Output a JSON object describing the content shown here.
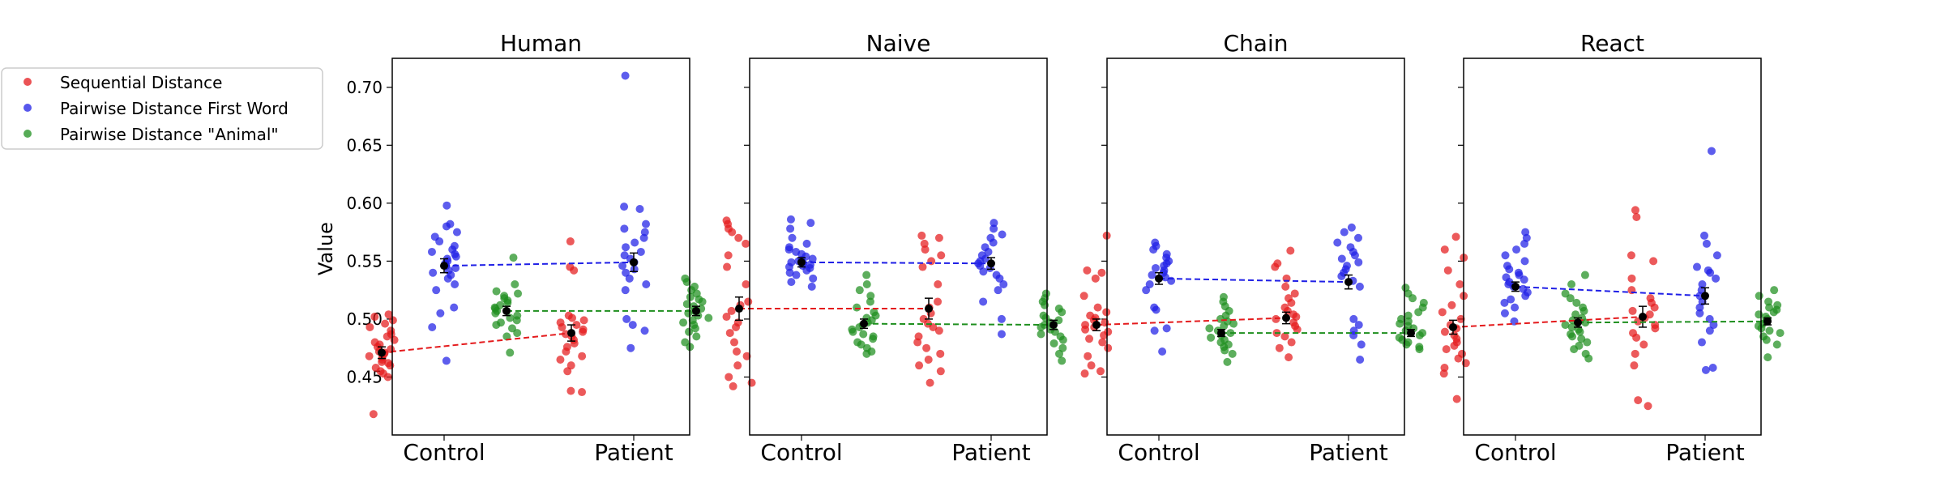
{
  "ylabel": "Value",
  "legend": {
    "placement": "upper-left-outside",
    "entries": [
      {
        "label": "Sequential Distance",
        "color": "#e41a1c"
      },
      {
        "label": "Pairwise Distance First Word",
        "color": "#1f1fe6"
      },
      {
        "label": "Pairwise Distance \"Animal\"",
        "color": "#1e8f1e"
      }
    ]
  },
  "chart_data": [
    {
      "type": "scatter",
      "title": "Human",
      "categories": [
        "Control",
        "Patient"
      ],
      "yticks": [
        "0.45",
        "0.50",
        "0.55",
        "0.60",
        "0.65",
        "0.70"
      ],
      "ylim": [
        0.4,
        0.725
      ],
      "series": [
        {
          "name": "Sequential Distance",
          "means": [
            0.471,
            0.488
          ],
          "err": [
            0.005,
            0.007
          ],
          "points": [
            [
              0.418,
              0.45,
              0.453,
              0.455,
              0.458,
              0.46,
              0.462,
              0.463,
              0.465,
              0.467,
              0.468,
              0.47,
              0.471,
              0.472,
              0.474,
              0.476,
              0.478,
              0.48,
              0.482,
              0.485,
              0.487,
              0.49,
              0.493,
              0.496,
              0.499,
              0.502,
              0.504
            ],
            [
              0.437,
              0.438,
              0.455,
              0.46,
              0.465,
              0.468,
              0.472,
              0.476,
              0.479,
              0.482,
              0.485,
              0.487,
              0.489,
              0.491,
              0.493,
              0.495,
              0.497,
              0.499,
              0.501,
              0.503,
              0.542,
              0.545,
              0.567
            ]
          ]
        },
        {
          "name": "Pairwise Distance First Word",
          "means": [
            0.546,
            0.549
          ],
          "err": [
            0.006,
            0.008
          ],
          "points": [
            [
              0.464,
              0.493,
              0.505,
              0.51,
              0.525,
              0.53,
              0.535,
              0.538,
              0.54,
              0.542,
              0.544,
              0.546,
              0.548,
              0.55,
              0.552,
              0.554,
              0.556,
              0.558,
              0.56,
              0.563,
              0.567,
              0.571,
              0.575,
              0.58,
              0.582,
              0.598
            ],
            [
              0.475,
              0.49,
              0.495,
              0.5,
              0.525,
              0.53,
              0.535,
              0.54,
              0.543,
              0.546,
              0.549,
              0.552,
              0.555,
              0.558,
              0.562,
              0.566,
              0.57,
              0.575,
              0.578,
              0.582,
              0.595,
              0.597,
              0.71
            ]
          ]
        },
        {
          "name": "Pairwise Distance \"Animal\"",
          "means": [
            0.507,
            0.507
          ],
          "err": [
            0.004,
            0.004
          ],
          "points": [
            [
              0.471,
              0.485,
              0.488,
              0.492,
              0.495,
              0.497,
              0.499,
              0.501,
              0.503,
              0.505,
              0.507,
              0.509,
              0.51,
              0.512,
              0.514,
              0.516,
              0.518,
              0.52,
              0.522,
              0.524,
              0.53,
              0.553
            ],
            [
              0.476,
              0.48,
              0.485,
              0.489,
              0.492,
              0.495,
              0.497,
              0.499,
              0.501,
              0.503,
              0.505,
              0.507,
              0.509,
              0.511,
              0.513,
              0.515,
              0.517,
              0.519,
              0.522,
              0.525,
              0.528,
              0.532,
              0.535
            ]
          ]
        }
      ]
    },
    {
      "type": "scatter",
      "title": "Naive",
      "categories": [
        "Control",
        "Patient"
      ],
      "yticks": [
        "0.45",
        "0.50",
        "0.55",
        "0.60",
        "0.65",
        "0.70"
      ],
      "ylim": [
        0.4,
        0.725
      ],
      "series": [
        {
          "name": "Sequential Distance",
          "means": [
            0.509,
            0.509
          ],
          "err": [
            0.01,
            0.009
          ],
          "points": [
            [
              0.442,
              0.445,
              0.45,
              0.46,
              0.468,
              0.472,
              0.48,
              0.488,
              0.493,
              0.497,
              0.502,
              0.507,
              0.512,
              0.515,
              0.53,
              0.545,
              0.555,
              0.565,
              0.57,
              0.575,
              0.578,
              0.582,
              0.585
            ],
            [
              0.445,
              0.455,
              0.46,
              0.465,
              0.47,
              0.475,
              0.48,
              0.485,
              0.49,
              0.493,
              0.496,
              0.5,
              0.505,
              0.51,
              0.515,
              0.53,
              0.545,
              0.55,
              0.555,
              0.56,
              0.565,
              0.57,
              0.572
            ]
          ]
        },
        {
          "name": "Pairwise Distance First Word",
          "means": [
            0.549,
            0.548
          ],
          "err": [
            0.004,
            0.005
          ],
          "points": [
            [
              0.528,
              0.532,
              0.535,
              0.538,
              0.54,
              0.542,
              0.544,
              0.545,
              0.546,
              0.547,
              0.548,
              0.549,
              0.55,
              0.551,
              0.552,
              0.554,
              0.556,
              0.558,
              0.56,
              0.562,
              0.565,
              0.57,
              0.578,
              0.583,
              0.586
            ],
            [
              0.487,
              0.5,
              0.515,
              0.525,
              0.53,
              0.535,
              0.538,
              0.541,
              0.544,
              0.546,
              0.548,
              0.55,
              0.552,
              0.555,
              0.558,
              0.562,
              0.566,
              0.57,
              0.573,
              0.578,
              0.583
            ]
          ]
        },
        {
          "name": "Pairwise Distance \"Animal\"",
          "means": [
            0.496,
            0.495
          ],
          "err": [
            0.004,
            0.004
          ],
          "points": [
            [
              0.47,
              0.472,
              0.475,
              0.478,
              0.48,
              0.483,
              0.485,
              0.487,
              0.489,
              0.491,
              0.493,
              0.495,
              0.497,
              0.499,
              0.501,
              0.503,
              0.506,
              0.51,
              0.515,
              0.52,
              0.525,
              0.53,
              0.538
            ],
            [
              0.464,
              0.47,
              0.475,
              0.479,
              0.482,
              0.485,
              0.487,
              0.489,
              0.491,
              0.493,
              0.495,
              0.497,
              0.499,
              0.501,
              0.503,
              0.506,
              0.509,
              0.512,
              0.515,
              0.518,
              0.522
            ]
          ]
        }
      ]
    },
    {
      "type": "scatter",
      "title": "Chain",
      "categories": [
        "Control",
        "Patient"
      ],
      "yticks": [
        "0.45",
        "0.50",
        "0.55",
        "0.60",
        "0.65",
        "0.70"
      ],
      "ylim": [
        0.4,
        0.725
      ],
      "series": [
        {
          "name": "Sequential Distance",
          "means": [
            0.495,
            0.501
          ],
          "err": [
            0.005,
            0.005
          ],
          "points": [
            [
              0.453,
              0.455,
              0.46,
              0.468,
              0.475,
              0.48,
              0.483,
              0.486,
              0.489,
              0.491,
              0.493,
              0.495,
              0.497,
              0.499,
              0.501,
              0.503,
              0.506,
              0.51,
              0.52,
              0.535,
              0.54,
              0.542,
              0.572
            ],
            [
              0.467,
              0.475,
              0.48,
              0.485,
              0.488,
              0.491,
              0.494,
              0.497,
              0.5,
              0.502,
              0.504,
              0.507,
              0.51,
              0.514,
              0.518,
              0.522,
              0.528,
              0.535,
              0.545,
              0.548,
              0.559
            ]
          ]
        },
        {
          "name": "Pairwise Distance First Word",
          "means": [
            0.535,
            0.532
          ],
          "err": [
            0.005,
            0.006
          ],
          "points": [
            [
              0.472,
              0.49,
              0.492,
              0.508,
              0.51,
              0.525,
              0.53,
              0.533,
              0.536,
              0.538,
              0.54,
              0.542,
              0.544,
              0.546,
              0.548,
              0.55,
              0.553,
              0.556,
              0.56,
              0.563,
              0.566
            ],
            [
              0.465,
              0.478,
              0.486,
              0.49,
              0.495,
              0.5,
              0.528,
              0.533,
              0.537,
              0.54,
              0.543,
              0.546,
              0.549,
              0.552,
              0.555,
              0.558,
              0.562,
              0.566,
              0.57,
              0.575,
              0.579
            ]
          ]
        },
        {
          "name": "Pairwise Distance \"Animal\"",
          "means": [
            0.488,
            0.488
          ],
          "err": [
            0.003,
            0.003
          ],
          "points": [
            [
              0.463,
              0.47,
              0.473,
              0.476,
              0.478,
              0.48,
              0.482,
              0.484,
              0.486,
              0.488,
              0.49,
              0.492,
              0.494,
              0.496,
              0.498,
              0.5,
              0.503,
              0.507,
              0.511,
              0.515,
              0.519
            ],
            [
              0.474,
              0.476,
              0.478,
              0.48,
              0.482,
              0.484,
              0.486,
              0.488,
              0.49,
              0.492,
              0.494,
              0.496,
              0.498,
              0.5,
              0.503,
              0.506,
              0.51,
              0.514,
              0.518,
              0.522,
              0.527
            ]
          ]
        }
      ]
    },
    {
      "type": "scatter",
      "title": "React",
      "categories": [
        "Control",
        "Patient"
      ],
      "yticks": [
        "0.45",
        "0.50",
        "0.55",
        "0.60",
        "0.65",
        "0.70"
      ],
      "ylim": [
        0.4,
        0.725
      ],
      "series": [
        {
          "name": "Sequential Distance",
          "means": [
            0.493,
            0.502
          ],
          "err": [
            0.006,
            0.009
          ],
          "points": [
            [
              0.431,
              0.453,
              0.458,
              0.462,
              0.466,
              0.47,
              0.474,
              0.477,
              0.48,
              0.483,
              0.486,
              0.489,
              0.492,
              0.495,
              0.5,
              0.506,
              0.512,
              0.52,
              0.53,
              0.542,
              0.553,
              0.56,
              0.571
            ],
            [
              0.425,
              0.43,
              0.46,
              0.47,
              0.478,
              0.484,
              0.488,
              0.492,
              0.495,
              0.498,
              0.501,
              0.504,
              0.507,
              0.51,
              0.514,
              0.518,
              0.525,
              0.535,
              0.55,
              0.555,
              0.588,
              0.594
            ]
          ]
        },
        {
          "name": "Pairwise Distance First Word",
          "means": [
            0.528,
            0.52
          ],
          "err": [
            0.004,
            0.007
          ],
          "points": [
            [
              0.498,
              0.505,
              0.51,
              0.514,
              0.517,
              0.52,
              0.523,
              0.526,
              0.528,
              0.53,
              0.532,
              0.534,
              0.536,
              0.538,
              0.54,
              0.543,
              0.546,
              0.55,
              0.555,
              0.56,
              0.565,
              0.57,
              0.575
            ],
            [
              0.456,
              0.458,
              0.48,
              0.49,
              0.495,
              0.5,
              0.505,
              0.51,
              0.515,
              0.52,
              0.525,
              0.53,
              0.535,
              0.54,
              0.542,
              0.545,
              0.555,
              0.565,
              0.572,
              0.645
            ]
          ]
        },
        {
          "name": "Pairwise Distance \"Animal\"",
          "means": [
            0.497,
            0.498
          ],
          "err": [
            0.004,
            0.003
          ],
          "points": [
            [
              0.466,
              0.47,
              0.474,
              0.477,
              0.48,
              0.483,
              0.485,
              0.487,
              0.489,
              0.491,
              0.493,
              0.495,
              0.497,
              0.499,
              0.501,
              0.504,
              0.507,
              0.51,
              0.514,
              0.518,
              0.522,
              0.53,
              0.538
            ],
            [
              0.467,
              0.478,
              0.482,
              0.485,
              0.488,
              0.49,
              0.492,
              0.494,
              0.496,
              0.498,
              0.5,
              0.502,
              0.504,
              0.506,
              0.508,
              0.51,
              0.512,
              0.515,
              0.52,
              0.525
            ]
          ]
        }
      ]
    }
  ]
}
